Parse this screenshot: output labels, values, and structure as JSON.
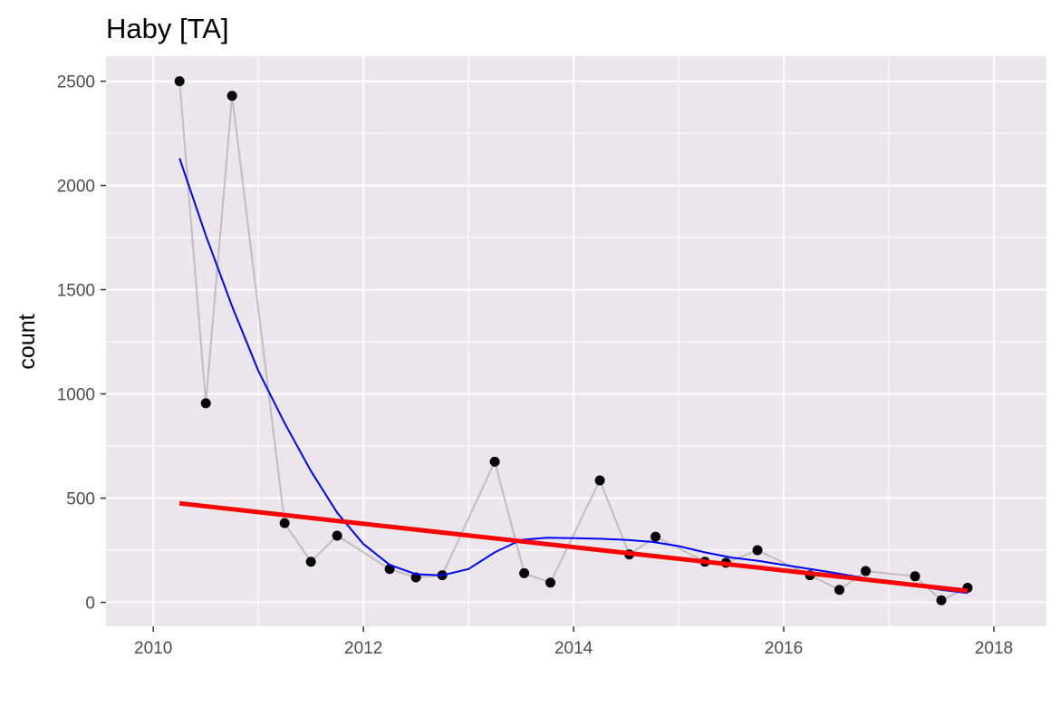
{
  "chart_data": {
    "type": "line",
    "title": "Haby  [TA]",
    "xlabel": "",
    "ylabel": "count",
    "xlim": [
      2009.55,
      2018.5
    ],
    "ylim": [
      -115,
      2620
    ],
    "x_ticks": [
      2010,
      2012,
      2014,
      2016,
      2018
    ],
    "y_ticks": [
      0,
      500,
      1000,
      1500,
      2000,
      2500
    ],
    "grid": true,
    "legend": "none",
    "colors": {
      "panel_background": "#EBE6EC",
      "grid": "#FFFFFF",
      "observed_line": "#BEBEBE",
      "points": "#000000",
      "smooth": "#0000FF",
      "trend": "#FF0000"
    },
    "series": [
      {
        "kind": "observed",
        "x": [
          2010.25,
          2010.5,
          2010.75,
          2011.25,
          2011.5,
          2011.75,
          2012.25,
          2012.5,
          2012.75,
          2013.25,
          2013.53,
          2013.78,
          2014.25,
          2014.53,
          2014.78,
          2015.25,
          2015.45,
          2015.75,
          2016.25,
          2016.53,
          2016.78,
          2017.25,
          2017.5,
          2017.75
        ],
        "y": [
          2500,
          955,
          2430,
          380,
          195,
          320,
          160,
          120,
          130,
          675,
          140,
          95,
          585,
          230,
          315,
          195,
          190,
          250,
          130,
          60,
          150,
          125,
          10,
          70
        ]
      },
      {
        "kind": "smooth",
        "x": [
          2010.25,
          2010.5,
          2010.75,
          2011.0,
          2011.25,
          2011.5,
          2011.75,
          2012.0,
          2012.25,
          2012.5,
          2012.75,
          2013.0,
          2013.25,
          2013.5,
          2013.75,
          2014.0,
          2014.25,
          2014.5,
          2014.75,
          2015.0,
          2015.25,
          2015.5,
          2015.75,
          2016.0,
          2016.25,
          2016.5,
          2016.75,
          2017.0,
          2017.25,
          2017.5,
          2017.75
        ],
        "y": [
          2130,
          1760,
          1420,
          1110,
          860,
          630,
          430,
          280,
          180,
          135,
          130,
          160,
          240,
          300,
          310,
          308,
          305,
          300,
          290,
          270,
          240,
          215,
          200,
          180,
          160,
          140,
          118,
          100,
          80,
          60,
          45
        ]
      },
      {
        "kind": "trend",
        "x": [
          2010.25,
          2017.75
        ],
        "y": [
          475,
          55
        ]
      }
    ]
  }
}
